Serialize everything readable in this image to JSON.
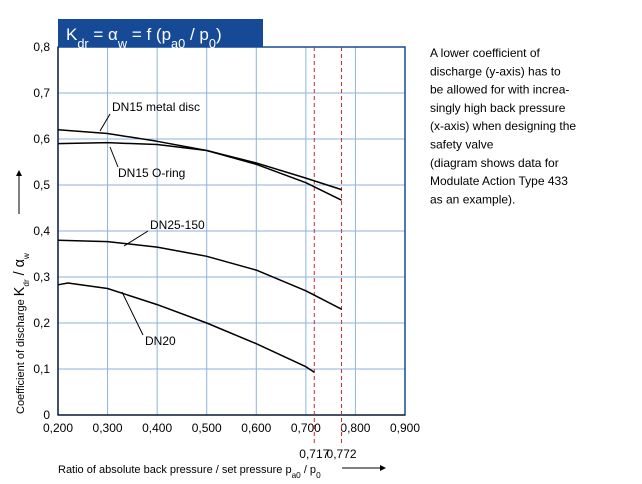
{
  "chart_data": {
    "type": "line",
    "title": [
      {
        "text": "K"
      },
      {
        "text": "dr",
        "sub": true
      },
      {
        "text": " = α"
      },
      {
        "text": "w",
        "sub": true
      },
      {
        "text": " = f (p"
      },
      {
        "text": "a0",
        "sub": true
      },
      {
        "text": " / p"
      },
      {
        "text": "0",
        "sub": true
      },
      {
        "text": ")"
      }
    ],
    "y_label": [
      {
        "text": "Coefficient of discharge "
      },
      {
        "text": "K",
        "big": true
      },
      {
        "text": "dr",
        "sub": true
      },
      {
        "text": " / α",
        "big": true
      },
      {
        "text": "w",
        "sub": true
      }
    ],
    "x_label": [
      {
        "text": "Ratio of absolute back pressure / set pressure p"
      },
      {
        "text": "a0",
        "sub": true
      },
      {
        "text": " / p"
      },
      {
        "text": "0",
        "sub": true
      }
    ],
    "xlim": [
      0.2,
      0.9
    ],
    "ylim": [
      0,
      0.8
    ],
    "xticks": [
      {
        "value": 0.2,
        "label": "0,200"
      },
      {
        "value": 0.3,
        "label": "0,300"
      },
      {
        "value": 0.4,
        "label": "0,400"
      },
      {
        "value": 0.5,
        "label": "0,500"
      },
      {
        "value": 0.6,
        "label": "0,600"
      },
      {
        "value": 0.7,
        "label": "0,700"
      },
      {
        "value": 0.8,
        "label": "0,800"
      },
      {
        "value": 0.9,
        "label": "0,900"
      }
    ],
    "yticks": [
      0,
      {
        "value": 0.1,
        "label": "0,1"
      },
      {
        "value": 0.2,
        "label": "0,2"
      },
      {
        "value": 0.3,
        "label": "0,3"
      },
      {
        "value": 0.4,
        "label": "0,4"
      },
      {
        "value": 0.5,
        "label": "0,5"
      },
      {
        "value": 0.6,
        "label": "0,6"
      },
      {
        "value": 0.7,
        "label": "0,7"
      },
      {
        "value": 0.8,
        "label": "0,8"
      }
    ],
    "grid": true,
    "reference_lines": [
      {
        "value": 0.717,
        "label": "0,717"
      },
      {
        "value": 0.772,
        "label": "0,772"
      }
    ],
    "reference_color": "#d9262b",
    "series": [
      {
        "name": "DN15 metal disc",
        "color": "#000000",
        "x": [
          0.2,
          0.3,
          0.4,
          0.5,
          0.6,
          0.7,
          0.772
        ],
        "values": [
          0.62,
          0.612,
          0.595,
          0.575,
          0.548,
          0.515,
          0.49
        ]
      },
      {
        "name": "DN15 O-ring",
        "color": "#000000",
        "x": [
          0.2,
          0.3,
          0.4,
          0.5,
          0.6,
          0.7,
          0.772
        ],
        "values": [
          0.59,
          0.592,
          0.588,
          0.575,
          0.545,
          0.505,
          0.467
        ]
      },
      {
        "name": "DN25-150",
        "color": "#000000",
        "x": [
          0.2,
          0.3,
          0.4,
          0.5,
          0.6,
          0.7,
          0.772
        ],
        "values": [
          0.38,
          0.377,
          0.365,
          0.345,
          0.315,
          0.27,
          0.23
        ]
      },
      {
        "name": "DN20",
        "color": "#000000",
        "x": [
          0.2,
          0.22,
          0.3,
          0.4,
          0.5,
          0.6,
          0.7,
          0.717
        ],
        "values": [
          0.283,
          0.287,
          0.275,
          0.24,
          0.2,
          0.155,
          0.105,
          0.093
        ]
      }
    ],
    "note": [
      "A lower coefficient of",
      "discharge (y-axis) has to",
      "be allowed for with increa-",
      "singly high back pressure",
      "(x-axis) when designing the",
      "safety valve",
      "(diagram shows data for",
      "Modulate Action Type 433",
      "as an example)."
    ]
  }
}
